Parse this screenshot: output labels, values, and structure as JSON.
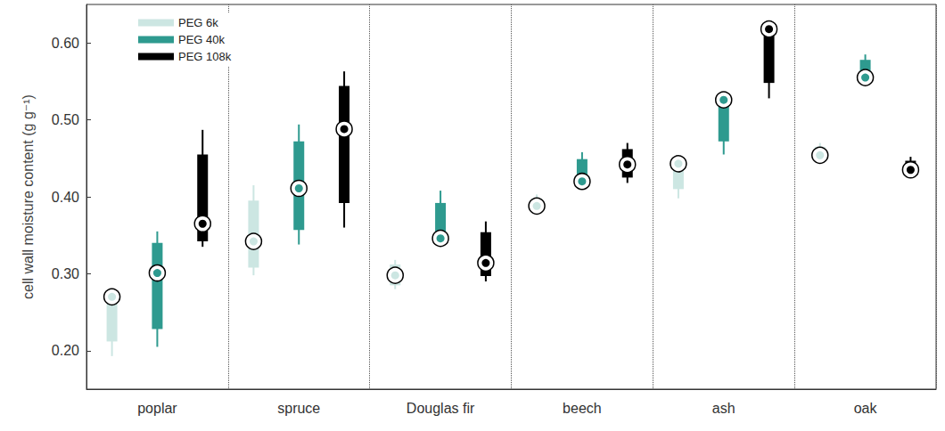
{
  "chart_data": {
    "type": "boxplot",
    "ylabel": "cell wall moisture content (g g⁻¹)",
    "categories": [
      "poplar",
      "spruce",
      "Douglas fir",
      "beech",
      "ash",
      "oak"
    ],
    "ylim": [
      0.15,
      0.65
    ],
    "yticks": [
      {
        "value": 0.2,
        "label": "0.20"
      },
      {
        "value": 0.3,
        "label": "0.30"
      },
      {
        "value": 0.4,
        "label": "0.40"
      },
      {
        "value": 0.5,
        "label": "0.50"
      },
      {
        "value": 0.6,
        "label": "0.60"
      }
    ],
    "grid": false,
    "legend": "upper left",
    "series": [
      {
        "name": "PEG 6k",
        "color": "#cce6e2",
        "values": [
          0.27,
          0.342,
          0.298,
          0.388,
          0.443,
          0.454
        ],
        "whisker_low": [
          0.193,
          0.298,
          0.28,
          0.385,
          0.398,
          0.45
        ],
        "box_low": [
          0.212,
          0.308,
          0.285,
          0.388,
          0.41,
          0.452
        ],
        "box_high": [
          0.265,
          0.395,
          0.312,
          0.398,
          0.445,
          0.465
        ],
        "whisker_high": [
          0.272,
          0.415,
          0.318,
          0.403,
          0.45,
          0.47
        ]
      },
      {
        "name": "PEG 40k",
        "color": "#2e9a8f",
        "values": [
          0.301,
          0.411,
          0.346,
          0.42,
          0.526,
          0.555
        ],
        "whisker_low": [
          0.205,
          0.338,
          0.345,
          0.418,
          0.455,
          0.55
        ],
        "box_low": [
          0.228,
          0.357,
          0.35,
          0.42,
          0.472,
          0.555
        ],
        "box_high": [
          0.34,
          0.472,
          0.392,
          0.449,
          0.525,
          0.578
        ],
        "whisker_high": [
          0.355,
          0.494,
          0.408,
          0.458,
          0.53,
          0.585
        ]
      },
      {
        "name": "PEG 108k",
        "color": "#000000",
        "values": [
          0.365,
          0.488,
          0.314,
          0.442,
          0.618,
          0.435
        ],
        "whisker_low": [
          0.335,
          0.36,
          0.29,
          0.418,
          0.528,
          0.43
        ],
        "box_low": [
          0.342,
          0.392,
          0.297,
          0.425,
          0.548,
          0.432
        ],
        "box_high": [
          0.455,
          0.544,
          0.354,
          0.462,
          0.615,
          0.447
        ],
        "whisker_high": [
          0.487,
          0.563,
          0.368,
          0.47,
          0.62,
          0.452
        ]
      }
    ]
  }
}
